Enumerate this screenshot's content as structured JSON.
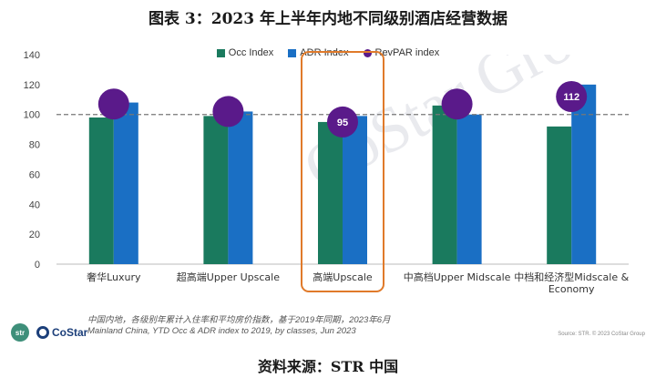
{
  "title": "图表 3：2023 年上半年内地不同级别酒店经营数据",
  "legend": [
    {
      "label": "Occ Index",
      "color": "#1a7a5e",
      "shape": "square"
    },
    {
      "label": "ADR Index",
      "color": "#1a6fc4",
      "shape": "square"
    },
    {
      "label": "RevPAR index",
      "color": "#5a1a8a",
      "shape": "circle"
    }
  ],
  "chart_data": {
    "type": "bar",
    "categories": [
      "奢华Luxury",
      "超高端Upper Upscale",
      "高端Upscale",
      "中高档Upper Midscale",
      "中档和经济型Midscale & Economy"
    ],
    "category_lines": [
      [
        "奢华Luxury"
      ],
      [
        "超高端Upper Upscale"
      ],
      [
        "高端Upscale"
      ],
      [
        "中高档Upper Midscale"
      ],
      [
        "中档和经济型Midscale &",
        "Economy"
      ]
    ],
    "series": [
      {
        "name": "Occ Index",
        "type": "bar",
        "color": "#1a7a5e",
        "values": [
          98,
          99,
          95,
          106,
          92
        ]
      },
      {
        "name": "ADR Index",
        "type": "bar",
        "color": "#1a6fc4",
        "values": [
          108,
          102,
          99,
          100,
          120
        ]
      },
      {
        "name": "RevPAR index",
        "type": "scatter",
        "color": "#5a1a8a",
        "values": [
          107,
          102,
          95,
          107,
          112
        ]
      }
    ],
    "data_labels": [
      {
        "category_index": 2,
        "series": "RevPAR index",
        "text": "95"
      },
      {
        "category_index": 4,
        "series": "RevPAR index",
        "text": "112"
      }
    ],
    "reference_line": 100,
    "yticks": [
      0,
      20,
      40,
      60,
      80,
      100,
      120,
      140
    ],
    "ylim": [
      0,
      140
    ],
    "highlight_category": "高端Upscale",
    "highlight_color": "#e07a2a",
    "grid": false,
    "legend_position": "top-center"
  },
  "note_lines": [
    "中国内地，各级别年累计入住率和平均房价指数，基于2019年同期，2023年6月",
    "Mainland China, YTD Occ & ADR index to 2019, by classes, Jun 2023"
  ],
  "copyright": "Source: STR. © 2023 CoStar Group",
  "logos": {
    "str": "str",
    "costar": "CoStar"
  },
  "watermark_text": "CoStar Group",
  "source": "资料来源：STR 中国"
}
